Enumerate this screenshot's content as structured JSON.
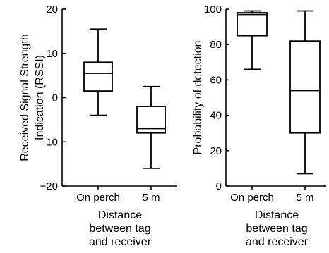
{
  "chart_data": [
    {
      "type": "box",
      "categories": [
        "On perch",
        "5 m"
      ],
      "ylabel": "Received Signal Strength Indication (RSSI)",
      "ylabel_lines": [
        "Received Signal Strength",
        "Indication (RSSI)"
      ],
      "xlabel": "Distance between tag and receiver",
      "xlabel_lines": [
        "Distance",
        "between tag",
        "and receiver"
      ],
      "ylim": [
        -20,
        20
      ],
      "yticks": [
        -20,
        -10,
        0,
        10,
        20
      ],
      "ytick_labels": [
        "−20",
        "−10",
        "0",
        "10",
        "20"
      ],
      "boxes": [
        {
          "category": "On perch",
          "whisker_low": -4,
          "q1": 1.5,
          "median": 5.5,
          "q3": 8,
          "whisker_high": 15.5
        },
        {
          "category": "5 m",
          "whisker_low": -16,
          "q1": -8,
          "median": -7,
          "q3": -2,
          "whisker_high": 2.5
        }
      ],
      "grid": false
    },
    {
      "type": "box",
      "categories": [
        "On perch",
        "5 m"
      ],
      "ylabel": "Probability of detection",
      "ylabel_lines": [
        "Probability of detection"
      ],
      "xlabel": "Distance between tag and receiver",
      "xlabel_lines": [
        "Distance",
        "between tag",
        "and receiver"
      ],
      "ylim": [
        0,
        100
      ],
      "yticks": [
        0,
        20,
        40,
        60,
        80,
        100
      ],
      "ytick_labels": [
        "0",
        "20",
        "40",
        "60",
        "80",
        "100"
      ],
      "boxes": [
        {
          "category": "On perch",
          "whisker_low": 66,
          "q1": 85,
          "median": 97,
          "q3": 98,
          "whisker_high": 99
        },
        {
          "category": "5 m",
          "whisker_low": 7,
          "q1": 30,
          "median": 54,
          "q3": 82,
          "whisker_high": 99
        }
      ],
      "grid": false
    }
  ]
}
